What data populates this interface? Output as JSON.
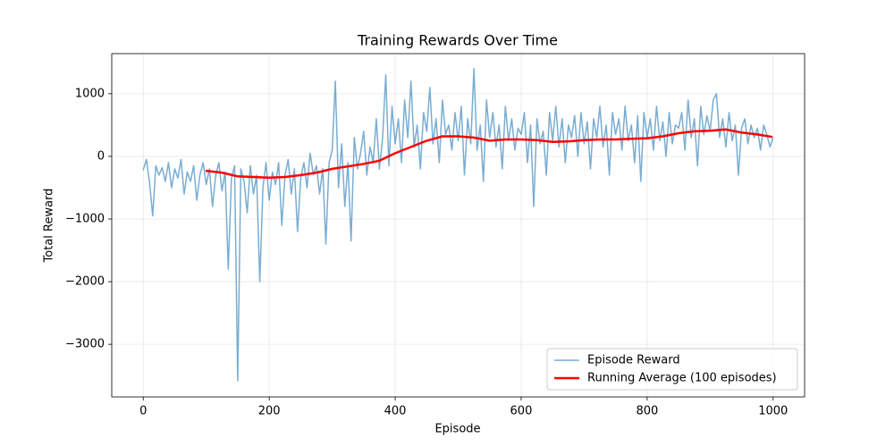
{
  "chart_data": {
    "type": "line",
    "title": "Training Rewards Over Time",
    "x_label": "Episode",
    "y_label": "Total Reward",
    "xlim": [
      -50,
      1050
    ],
    "ylim": [
      -3840,
      1640
    ],
    "xticks": [
      0,
      200,
      400,
      600,
      800,
      1000
    ],
    "yticks": [
      {
        "value": -3000,
        "label": "−3000"
      },
      {
        "value": -2000,
        "label": "−2000"
      },
      {
        "value": -1000,
        "label": "−1000"
      },
      0,
      1000
    ],
    "grid": true,
    "legend": "lower right",
    "series": [
      {
        "name": "Episode Reward",
        "color": "#1f77b4",
        "alpha": 0.6,
        "width": 1.5,
        "x": [
          0,
          5,
          10,
          15,
          20,
          25,
          30,
          35,
          40,
          45,
          50,
          55,
          60,
          65,
          70,
          75,
          80,
          85,
          90,
          95,
          100,
          105,
          110,
          115,
          120,
          125,
          130,
          135,
          140,
          145,
          150,
          155,
          160,
          165,
          170,
          175,
          180,
          185,
          190,
          195,
          200,
          205,
          210,
          215,
          220,
          225,
          230,
          235,
          240,
          245,
          250,
          255,
          260,
          265,
          270,
          275,
          280,
          285,
          290,
          295,
          300,
          305,
          310,
          315,
          320,
          325,
          330,
          335,
          340,
          345,
          350,
          355,
          360,
          365,
          370,
          375,
          380,
          385,
          390,
          395,
          400,
          405,
          410,
          415,
          420,
          425,
          430,
          435,
          440,
          445,
          450,
          455,
          460,
          465,
          470,
          475,
          480,
          485,
          490,
          495,
          500,
          505,
          510,
          515,
          520,
          525,
          530,
          535,
          540,
          545,
          550,
          555,
          560,
          565,
          570,
          575,
          580,
          585,
          590,
          595,
          600,
          605,
          610,
          615,
          620,
          625,
          630,
          635,
          640,
          645,
          650,
          655,
          660,
          665,
          670,
          675,
          680,
          685,
          690,
          695,
          700,
          705,
          710,
          715,
          720,
          725,
          730,
          735,
          740,
          745,
          750,
          755,
          760,
          765,
          770,
          775,
          780,
          785,
          790,
          795,
          800,
          805,
          810,
          815,
          820,
          825,
          830,
          835,
          840,
          845,
          850,
          855,
          860,
          865,
          870,
          875,
          880,
          885,
          890,
          895,
          900,
          905,
          910,
          915,
          920,
          925,
          930,
          935,
          940,
          945,
          950,
          955,
          960,
          965,
          970,
          975,
          980,
          985,
          990,
          995,
          1000
        ],
        "values": [
          -220,
          -50,
          -420,
          -950,
          -150,
          -300,
          -180,
          -400,
          -100,
          -500,
          -200,
          -350,
          -50,
          -600,
          -250,
          -400,
          -150,
          -700,
          -300,
          -100,
          -450,
          -200,
          -800,
          -300,
          -100,
          -550,
          -250,
          -1800,
          -350,
          -150,
          -3580,
          -200,
          -400,
          -900,
          -150,
          -600,
          -300,
          -2000,
          -500,
          -100,
          -700,
          -250,
          -450,
          -100,
          -1100,
          -300,
          -50,
          -600,
          -200,
          -1200,
          -350,
          -100,
          -500,
          50,
          -300,
          -150,
          -600,
          -200,
          -1400,
          -100,
          100,
          1200,
          -500,
          200,
          -800,
          -100,
          -1350,
          300,
          -200,
          50,
          400,
          -300,
          150,
          -100,
          600,
          -200,
          300,
          1300,
          -150,
          800,
          200,
          600,
          -100,
          900,
          300,
          1200,
          150,
          500,
          -200,
          700,
          400,
          1100,
          200,
          600,
          -100,
          900,
          350,
          500,
          100,
          700,
          250,
          800,
          -300,
          600,
          200,
          1400,
          100,
          500,
          -400,
          900,
          300,
          700,
          150,
          500,
          -200,
          800,
          250,
          600,
          100,
          450,
          350,
          700,
          -100,
          500,
          -800,
          600,
          200,
          400,
          -300,
          700,
          250,
          800,
          150,
          600,
          -100,
          500,
          300,
          650,
          0,
          700,
          200,
          550,
          -200,
          600,
          300,
          800,
          150,
          500,
          -300,
          700,
          350,
          600,
          100,
          800,
          250,
          500,
          -100,
          650,
          -400,
          700,
          300,
          600,
          100,
          800,
          250,
          550,
          0,
          700,
          200,
          500,
          450,
          700,
          100,
          900,
          300,
          600,
          -150,
          800,
          350,
          650,
          400,
          900,
          1000,
          300,
          600,
          150,
          700,
          250,
          500,
          -300,
          450,
          600,
          200,
          500,
          300,
          450,
          100,
          500,
          350,
          150,
          300
        ]
      },
      {
        "name": "Running Average (100 episodes)",
        "color": "#ff0000",
        "alpha": 1,
        "width": 2.5,
        "x": [
          99,
          125,
          150,
          175,
          200,
          225,
          250,
          275,
          300,
          325,
          350,
          375,
          400,
          425,
          450,
          475,
          500,
          525,
          550,
          575,
          600,
          625,
          650,
          675,
          700,
          725,
          750,
          775,
          800,
          825,
          850,
          875,
          900,
          925,
          950,
          975,
          999
        ],
        "values": [
          -230,
          -260,
          -320,
          -330,
          -340,
          -330,
          -300,
          -260,
          -200,
          -160,
          -120,
          -70,
          50,
          150,
          250,
          320,
          320,
          300,
          250,
          270,
          270,
          260,
          230,
          240,
          260,
          270,
          270,
          280,
          290,
          320,
          370,
          400,
          410,
          430,
          380,
          350,
          310
        ]
      }
    ]
  }
}
